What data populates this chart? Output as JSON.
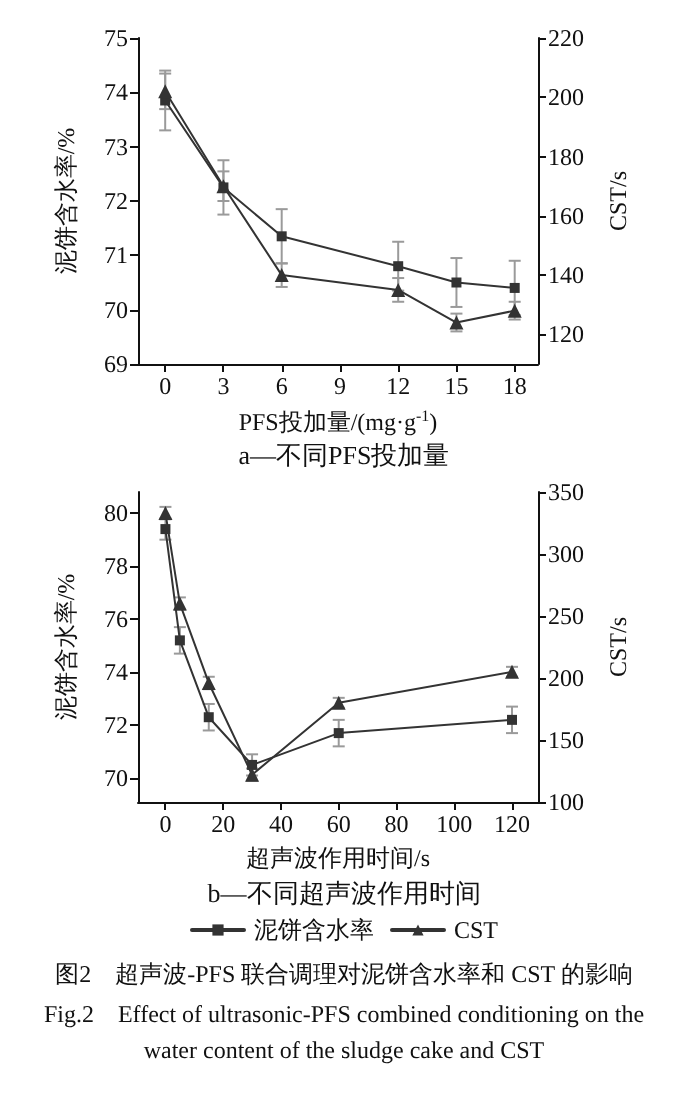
{
  "chart_data": [
    {
      "type": "line",
      "title": "a—不同PFS投加量",
      "xlabel": "PFS投加量/(mg·g$^{-1}$)",
      "ylabel": "泥饼含水率/%",
      "y2label": "CST/s",
      "x": [
        0,
        3,
        6,
        12,
        15,
        18
      ],
      "xlim": [
        -1.4,
        19.2
      ],
      "xticks": [
        0,
        3,
        6,
        9,
        12,
        15,
        18
      ],
      "ylim": [
        69,
        75
      ],
      "yticks": [
        69,
        70,
        71,
        72,
        73,
        74,
        75
      ],
      "y2lim": [
        110,
        220
      ],
      "y2ticks": [
        120,
        140,
        160,
        180,
        200,
        220
      ],
      "grid": false,
      "legend": false,
      "line_style": "solid",
      "series": [
        {
          "color": "#333333",
          "marker": "square",
          "values": [
            73.85,
            72.25,
            71.35,
            70.8,
            70.5,
            70.4
          ],
          "errors": [
            0.55,
            0.5,
            0.5,
            0.45,
            0.45,
            0.5
          ]
        },
        {
          "color": "#333333",
          "marker": "triangle",
          "axis": "y2",
          "values": [
            202,
            170,
            140,
            135,
            124,
            128
          ],
          "errors": [
            6,
            5,
            4,
            4,
            3,
            3
          ]
        }
      ]
    },
    {
      "type": "line",
      "title": "b—不同超声波作用时间",
      "xlabel": "超声波作用时间/s",
      "ylabel": "泥饼含水率/%",
      "y2label": "CST/s",
      "x": [
        0,
        5,
        15,
        30,
        60,
        120
      ],
      "xlim": [
        -9.5,
        129
      ],
      "xticks": [
        0,
        20,
        40,
        60,
        80,
        100,
        120
      ],
      "ylim": [
        69.1,
        80.8
      ],
      "yticks": [
        70,
        72,
        74,
        76,
        78,
        80
      ],
      "y2lim": [
        100,
        350
      ],
      "y2ticks": [
        100,
        150,
        200,
        250,
        300,
        350
      ],
      "grid": false,
      "legend": "bottom",
      "line_style": "solid",
      "annotations": [
        "图2　超声波-PFS 联合调理对泥饼含水率和 CST 的影响",
        "Fig.2　Effect of ultrasonic-PFS combined conditioning on the water content of the sludge cake and CST"
      ],
      "series": [
        {
          "name": "泥饼含水率",
          "color": "#333333",
          "marker": "square",
          "values": [
            79.4,
            75.2,
            72.3,
            70.5,
            71.7,
            72.2
          ],
          "errors": [
            0.4,
            0.5,
            0.5,
            0.4,
            0.5,
            0.5
          ]
        },
        {
          "name": "CST",
          "color": "#333333",
          "marker": "triangle",
          "axis": "y2",
          "values": [
            333,
            260,
            196,
            122,
            180,
            205
          ],
          "errors": [
            5,
            5,
            5,
            5,
            4,
            4
          ]
        }
      ]
    }
  ]
}
